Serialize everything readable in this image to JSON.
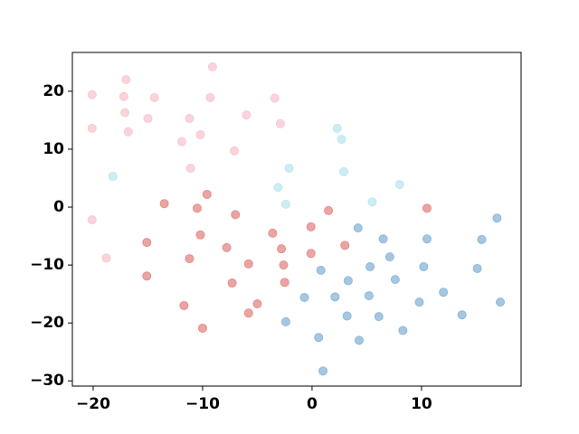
{
  "chart_data": {
    "type": "scatter",
    "xlim": [
      -21.9,
      19.1
    ],
    "ylim": [
      -30.9,
      26.7
    ],
    "xticks": [
      {
        "value": -20,
        "label": "−20"
      },
      {
        "value": -10,
        "label": "−10"
      },
      0,
      10
    ],
    "yticks": [
      {
        "value": -30,
        "label": "−30"
      },
      {
        "value": -20,
        "label": "−20"
      },
      {
        "value": -10,
        "label": "−10"
      },
      0,
      10,
      20
    ],
    "series": [
      {
        "color": "#f7c9d2",
        "x": [
          -20.1,
          -20.1,
          -20.1,
          -18.8,
          -17.0,
          -17.2,
          -17.1,
          -16.8,
          -15.0,
          -14.4,
          -11.9,
          -11.2,
          -11.1,
          -10.2,
          -9.1,
          -9.3,
          -6.0,
          -7.1,
          -3.4,
          -2.9
        ],
        "values": [
          19.4,
          13.6,
          -2.2,
          -8.8,
          22.0,
          19.1,
          16.3,
          13.0,
          15.3,
          18.9,
          11.3,
          15.3,
          6.7,
          12.5,
          24.2,
          18.9,
          15.9,
          9.7,
          18.8,
          14.4
        ]
      },
      {
        "color": "#bfe8ef",
        "x": [
          -18.2,
          2.3,
          2.7,
          -2.1,
          -3.1,
          -2.4,
          2.9,
          5.5,
          8.0
        ],
        "values": [
          5.3,
          13.6,
          11.7,
          6.7,
          3.4,
          0.5,
          6.1,
          0.9,
          3.9
        ]
      },
      {
        "color": "#e58f8c",
        "x": [
          -13.5,
          -9.6,
          -10.5,
          -7.0,
          -10.2,
          -15.1,
          -11.2,
          -15.1,
          -7.8,
          -5.8,
          -7.3,
          -11.7,
          -10.0,
          -5.8,
          -5.0,
          -3.6,
          -2.8,
          -2.6,
          -2.5,
          -0.1,
          -0.1,
          1.5,
          3.0,
          10.5
        ],
        "values": [
          0.6,
          2.2,
          -0.2,
          -1.3,
          -4.8,
          -6.1,
          -8.9,
          -11.9,
          -7.0,
          -9.8,
          -13.1,
          -17.0,
          -20.9,
          -18.3,
          -16.7,
          -4.5,
          -7.2,
          -10.0,
          -13.0,
          -3.4,
          -8.0,
          -0.6,
          -6.6,
          -0.2
        ]
      },
      {
        "color": "#8fb9db",
        "x": [
          4.2,
          6.5,
          10.5,
          16.9,
          15.5,
          7.1,
          5.3,
          3.3,
          0.8,
          -0.7,
          2.1,
          5.2,
          7.6,
          10.2,
          15.1,
          12.0,
          9.8,
          6.1,
          3.2,
          8.3,
          4.3,
          -2.4,
          0.6,
          1.0,
          13.7,
          17.2
        ],
        "values": [
          -3.6,
          -5.5,
          -5.5,
          -1.9,
          -5.6,
          -8.6,
          -10.3,
          -12.7,
          -10.9,
          -15.6,
          -15.5,
          -15.3,
          -12.5,
          -10.3,
          -10.6,
          -14.7,
          -16.4,
          -18.9,
          -18.8,
          -21.3,
          -23.0,
          -19.8,
          -22.5,
          -28.3,
          -18.6,
          -16.4
        ]
      }
    ]
  }
}
